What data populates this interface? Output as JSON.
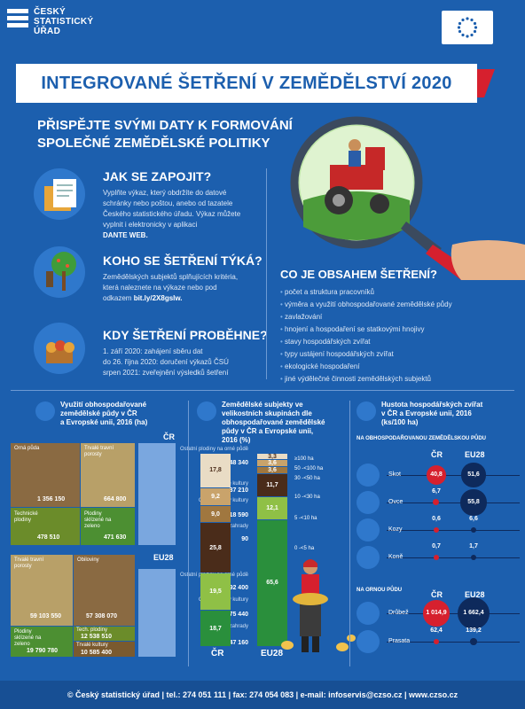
{
  "header": {
    "logo_line1": "ČESKÝ",
    "logo_line2": "STATISTICKÝ",
    "logo_line3": "ÚŘAD"
  },
  "title": "INTEGROVANÉ ŠETŘENÍ V ZEMĚDĚLSTVÍ 2020",
  "subtitle_line1": "PŘISPĚJTE SVÝMI DATY K FORMOVÁNÍ",
  "subtitle_line2": "SPOLEČNÉ ZEMĚDĚLSKÉ POLITIKY",
  "how": {
    "heading": "JAK SE ZAPOJIT?",
    "line1": "Vyplňte výkaz, který obdržíte do datové",
    "line2": "schránky  nebo poštou, anebo od tazatele",
    "line3": "Českého statistického úřadu. Výkaz můžete",
    "line4": "vyplnit i elektronicky v aplikaci",
    "line5": "DANTE WEB."
  },
  "who": {
    "heading": "KOHO SE ŠETŘENÍ TÝKÁ?",
    "line1": "Zemědělských subjektů splňujících kritéria,",
    "line2": "která naleznete na výkaze nebo pod",
    "line3_pre": "odkazem ",
    "line3_link": "bit.ly/2X8gslw."
  },
  "when": {
    "heading": "KDY ŠETŘENÍ PROBĚHNE?",
    "line1": "1. září 2020: zahájení sběru dat",
    "line2": "do 26. října 2020: doručení výkazů ČSÚ",
    "line3": "srpen 2021: zveřejnění výsledků šetření"
  },
  "content": {
    "heading": "CO JE OBSAHEM ŠETŘENÍ?",
    "items": [
      "počet a struktura pracovníků",
      "výměra a využití obhospodařované zemědělské půdy",
      "zavlažování",
      "hnojení a hospodaření se statkovými hnojivy",
      "stavy hospodářských zvířat",
      "typy ustájení hospodářských zvířat",
      "ekologické hospodaření",
      "jiné výdělečné činnosti zemědělských subjektů"
    ]
  },
  "land": {
    "title_line1": "Využití obhospodařované",
    "title_line2": "zemědělské půdy v ČR",
    "title_line3": "a Evropské unii, 2016 (ha)",
    "cr_label": "ČR",
    "eu_label": "EU28",
    "cr": {
      "orna": "Orná půda",
      "orna_val": "1 356 150",
      "travni": "Trvalé travní porosty",
      "travni_val": "664 800",
      "tech": "Technické plodiny",
      "tech_val": "478 510",
      "obilne": "Plodiny sklízené na zeleno",
      "obilne_val": "471 630",
      "l1": "Ostatní plodiny na orné půdě",
      "v1": "148 340",
      "l2": "Trvalé kultury",
      "v2": "37 210",
      "l3": "Ovocné plody kultury",
      "v3": "18 590",
      "l4": "Zeleninové zahrady",
      "v4": "90"
    },
    "eu": {
      "travni": "Trvalé travní porosty",
      "travni_val": "59 103 550",
      "orna": "Obiloviny",
      "orna_val": "57 308 070",
      "plodiny": "Plodiny sklízené na zeleno",
      "plodiny_val": "19 790 780",
      "tech": "Tech. plodiny",
      "tech_val": "12 538 510",
      "kultury": "Trvalé kultury",
      "kultury_val": "10 585 400",
      "l1": "Ostatní plodiny na orné půdě",
      "v1": "7 892 400",
      "l2": "Ovocné plody kultury",
      "v2": "5 875 440",
      "l3": "Zeleninové zahrady",
      "v3": "347 160"
    }
  },
  "farms": {
    "title_line1": "Zemědělské subjekty ve",
    "title_line2": "velikostních skupinách dle",
    "title_line3": "obhospodařované zemědělské",
    "title_line4": "půdy v ČR a Evropské unii,",
    "title_line5": "2016 (%)",
    "cr_label": "ČR",
    "eu_label": "EU28",
    "legend": [
      "≥100 ha",
      "50 -<100 ha",
      "30 -<50 ha",
      "10 -<30 ha",
      "5 -<10 ha",
      "0 -<5 ha"
    ]
  },
  "chart_data": {
    "type": "bar",
    "title": "Zemědělské subjekty ve velikostních skupinách dle obhospodařované zemědělské půdy v ČR a Evropské unii, 2016 (%)",
    "categories": [
      "ČR",
      "EU28"
    ],
    "series": [
      {
        "name": "0 -<5 ha",
        "values": [
          18.7,
          65.6
        ]
      },
      {
        "name": "5 -<10 ha",
        "values": [
          19.5,
          12.1
        ]
      },
      {
        "name": "10 -<30 ha",
        "values": [
          25.8,
          11.7
        ]
      },
      {
        "name": "30 -<50 ha",
        "values": [
          9.0,
          3.6
        ]
      },
      {
        "name": "50 -<100 ha",
        "values": [
          9.2,
          3.6
        ]
      },
      {
        "name": "≥100 ha",
        "values": [
          17.8,
          3.3
        ]
      }
    ],
    "labels": {
      "cr": [
        "18,7",
        "19,5",
        "25,8",
        "9,0",
        "9,2",
        "17,8"
      ],
      "eu": [
        "65,6",
        "12,1",
        "11,7",
        "3,6",
        "3,6",
        "3,3"
      ]
    },
    "colors": [
      "#2a8f3c",
      "#8fc046",
      "#4a2c1a",
      "#a0773f",
      "#c9a36b",
      "#e9dcc5"
    ]
  },
  "animals": {
    "title_line1": "Hustota hospodářských zvířat",
    "title_line2": "v ČR a Evropské unii, 2016",
    "title_line3": "(ks/100 ha)",
    "sub1": "NA OBHOSPODAŘOVANOU ZEMĚDĚLSKOU PŮDU",
    "sub2": "NA ORNOU PŮDU",
    "cr": "ČR",
    "eu": "EU28",
    "rows1": [
      {
        "name": "Skot",
        "cr": "40,8",
        "eu": "51,6"
      },
      {
        "name": "Ovce",
        "cr": "6,7",
        "eu": "55,8"
      },
      {
        "name": "Kozy",
        "cr": "0,6",
        "eu": "6,6"
      },
      {
        "name": "Koně",
        "cr": "0,7",
        "eu": "1,7"
      }
    ],
    "rows2": [
      {
        "name": "Drůbež",
        "cr": "1 014,9",
        "eu": "1 662,4"
      },
      {
        "name": "Prasata",
        "cr": "62,4",
        "eu": "139,2"
      }
    ]
  },
  "footer": {
    "text": "© Český statistický úřad  |  tel.: 274 051 111  |  fax: 274 054 083  |  e-mail: infoservis@czso.cz  |  www.czso.cz"
  },
  "colors": {
    "background": "#1c5fae",
    "accent_red": "#d6202e",
    "navy": "#0e2a5c"
  }
}
